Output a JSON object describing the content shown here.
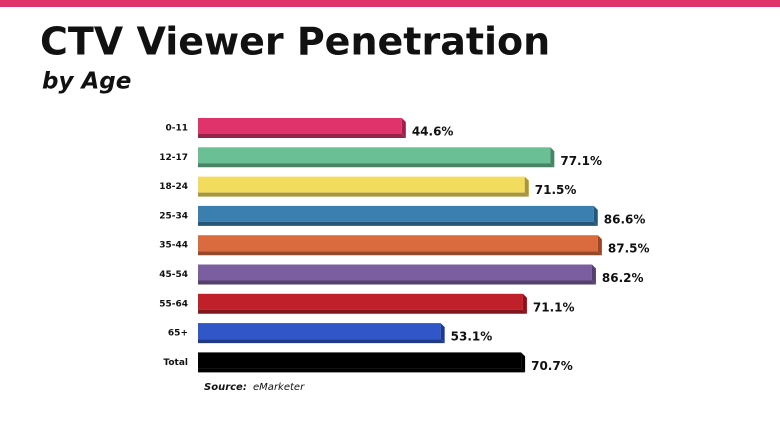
{
  "chart_data": {
    "type": "bar",
    "orientation": "horizontal",
    "title": "CTV Viewer Penetration",
    "subtitle": "by Age",
    "categories": [
      "0-11",
      "12-17",
      "18-24",
      "25-34",
      "35-44",
      "45-54",
      "55-64",
      "65+",
      "Total"
    ],
    "values": [
      44.6,
      77.1,
      71.5,
      86.6,
      87.5,
      86.2,
      71.1,
      53.1,
      70.7
    ],
    "value_labels": [
      "44.6%",
      "77.1%",
      "71.5%",
      "86.6%",
      "87.5%",
      "86.2%",
      "71.1%",
      "53.1%",
      "70.7%"
    ],
    "colors": [
      "#e0336b",
      "#6bbf94",
      "#f2dc5d",
      "#3a7fb0",
      "#d96b3f",
      "#7b5ea0",
      "#c0202a",
      "#3056c8",
      "#000000"
    ],
    "source_label": "Source:",
    "source": "eMarketer"
  }
}
